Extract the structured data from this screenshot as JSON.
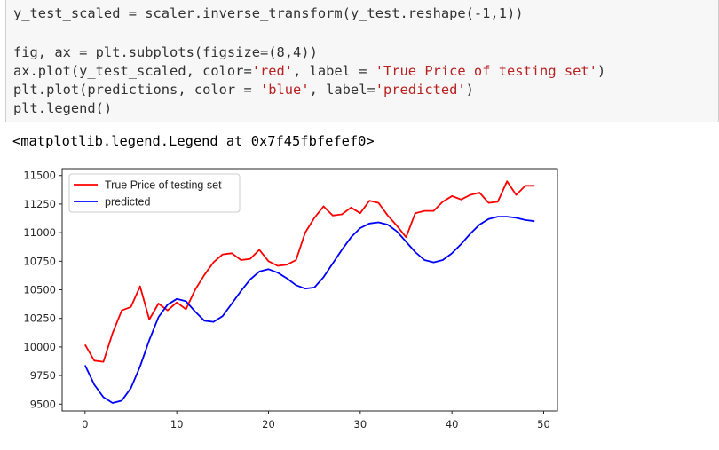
{
  "code_cell": {
    "lines": [
      [
        {
          "t": "y_test_scaled = scaler.inverse_transform(y_test.reshape(-1,1))",
          "c": ""
        }
      ],
      [
        {
          "t": "",
          "c": ""
        }
      ],
      [
        {
          "t": "fig, ax = plt.subplots(figsize=(8,4))",
          "c": ""
        }
      ],
      [
        {
          "t": "ax.plot(y_test_scaled, color=",
          "c": ""
        },
        {
          "t": "'red'",
          "c": "str"
        },
        {
          "t": ", label = ",
          "c": ""
        },
        {
          "t": "'True Price of testing set'",
          "c": "str"
        },
        {
          "t": ")",
          "c": ""
        }
      ],
      [
        {
          "t": "plt.plot(predictions, color = ",
          "c": ""
        },
        {
          "t": "'blue'",
          "c": "str"
        },
        {
          "t": ", label=",
          "c": ""
        },
        {
          "t": "'predicted'",
          "c": "str"
        },
        {
          "t": ")",
          "c": ""
        }
      ],
      [
        {
          "t": "plt.legend()",
          "c": ""
        }
      ]
    ]
  },
  "output": {
    "text": "<matplotlib.legend.Legend at 0x7f45fbfefef0>"
  },
  "chart_data": {
    "type": "line",
    "title": "",
    "xlabel": "",
    "ylabel": "",
    "xlim": [
      -2.5,
      51.5
    ],
    "ylim": [
      9440,
      11560
    ],
    "xticks": [
      0,
      10,
      20,
      30,
      40,
      50
    ],
    "yticks": [
      9500,
      9750,
      10000,
      10250,
      10500,
      10750,
      11000,
      11250,
      11500
    ],
    "legend_position": "upper-left",
    "series": [
      {
        "name": "True Price of testing set",
        "color": "#ff0000",
        "x": [
          0,
          1,
          2,
          3,
          4,
          5,
          6,
          7,
          8,
          9,
          10,
          11,
          12,
          13,
          14,
          15,
          16,
          17,
          18,
          19,
          20,
          21,
          22,
          23,
          24,
          25,
          26,
          27,
          28,
          29,
          30,
          31,
          32,
          33,
          34,
          35,
          36,
          37,
          38,
          39,
          40,
          41,
          42,
          43,
          44,
          45,
          46,
          47,
          48,
          49
        ],
        "values": [
          10020,
          9880,
          9870,
          10120,
          10320,
          10350,
          10530,
          10240,
          10380,
          10320,
          10390,
          10330,
          10500,
          10630,
          10740,
          10810,
          10820,
          10760,
          10770,
          10850,
          10750,
          10710,
          10720,
          10760,
          11000,
          11130,
          11230,
          11150,
          11160,
          11220,
          11170,
          11280,
          11260,
          11150,
          11060,
          10960,
          11170,
          11190,
          11190,
          11270,
          11320,
          11290,
          11330,
          11350,
          11260,
          11270,
          11450,
          11330,
          11410,
          11410
        ]
      },
      {
        "name": "predicted",
        "color": "#0000ff",
        "x": [
          0,
          1,
          2,
          3,
          4,
          5,
          6,
          7,
          8,
          9,
          10,
          11,
          12,
          13,
          14,
          15,
          16,
          17,
          18,
          19,
          20,
          21,
          22,
          23,
          24,
          25,
          26,
          27,
          28,
          29,
          30,
          31,
          32,
          33,
          34,
          35,
          36,
          37,
          38,
          39,
          40,
          41,
          42,
          43,
          44,
          45,
          46,
          47,
          48,
          49
        ],
        "values": [
          9840,
          9670,
          9560,
          9510,
          9530,
          9640,
          9830,
          10060,
          10260,
          10370,
          10420,
          10400,
          10310,
          10230,
          10220,
          10270,
          10380,
          10490,
          10590,
          10660,
          10680,
          10650,
          10600,
          10540,
          10510,
          10520,
          10610,
          10730,
          10850,
          10960,
          11040,
          11080,
          11090,
          11070,
          11010,
          10920,
          10830,
          10760,
          10740,
          10760,
          10820,
          10900,
          10990,
          11070,
          11120,
          11140,
          11140,
          11130,
          11110,
          11100
        ]
      }
    ]
  }
}
